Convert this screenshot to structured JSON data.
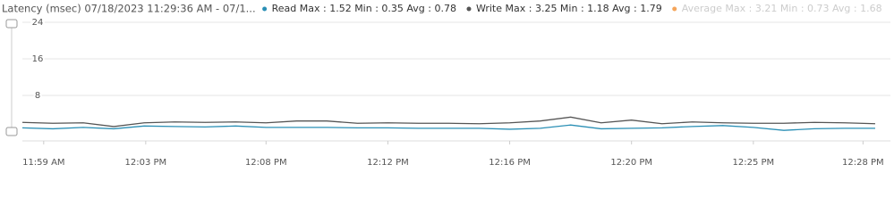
{
  "chart_data": {
    "type": "line",
    "title": "Latency (msec) 07/18/2023 11:29:36 AM - 07/1...",
    "legend": [
      {
        "label": "Read Max : 1.52 Min : 0.35 Avg : 0.78",
        "color": "#2a8fb5",
        "muted": false
      },
      {
        "label": "Write Max : 3.25 Min : 1.18 Avg : 1.79",
        "color": "#555555",
        "muted": false
      },
      {
        "label": "Average Max : 3.21 Min : 0.73 Avg : 1.68",
        "color": "#f5a55a",
        "muted": true
      }
    ],
    "x": [
      718.5,
      719.5,
      720.5,
      721.5,
      722.5,
      723.5,
      724.5,
      725.5,
      726.5,
      727.5,
      728.5,
      729.5,
      730.5,
      731.5,
      732.5,
      733.5,
      734.5,
      735.5,
      736.5,
      737.5,
      738.5,
      739.5,
      740.5,
      741.5,
      742.5,
      743.5,
      744.5,
      745.5,
      746.5
    ],
    "series": [
      {
        "name": "Read",
        "color": "#2a8fb5",
        "values": [
          0.9,
          0.7,
          1.0,
          0.7,
          1.3,
          1.2,
          1.1,
          1.3,
          1.0,
          1.0,
          1.0,
          0.9,
          0.9,
          0.8,
          0.8,
          0.8,
          0.6,
          0.8,
          1.52,
          0.7,
          0.8,
          0.9,
          1.2,
          1.4,
          1.0,
          0.35,
          0.7,
          0.8,
          0.8
        ]
      },
      {
        "name": "Write",
        "color": "#555555",
        "values": [
          2.1,
          1.9,
          2.0,
          1.18,
          2.0,
          2.2,
          2.1,
          2.2,
          2.0,
          2.4,
          2.4,
          1.9,
          2.0,
          1.9,
          1.9,
          1.8,
          2.0,
          2.4,
          3.25,
          2.0,
          2.6,
          1.8,
          2.2,
          2.0,
          1.9,
          1.9,
          2.1,
          2.0,
          1.8
        ]
      }
    ],
    "xlim": [
      718.5,
      747
    ],
    "xticks": [
      {
        "value": 719.2,
        "label": "11:59 AM"
      },
      {
        "value": 722.55,
        "label": "12:03 PM"
      },
      {
        "value": 726.5,
        "label": "12:08 PM"
      },
      {
        "value": 730.5,
        "label": "12:12 PM"
      },
      {
        "value": 734.5,
        "label": "12:16 PM"
      },
      {
        "value": 738.5,
        "label": "12:20 PM"
      },
      {
        "value": 742.5,
        "label": "12:25 PM"
      },
      {
        "value": 746.1,
        "label": "12:28 PM"
      }
    ],
    "ylim": [
      0,
      24
    ],
    "yticks": [
      8,
      16,
      24
    ],
    "grid": true
  }
}
